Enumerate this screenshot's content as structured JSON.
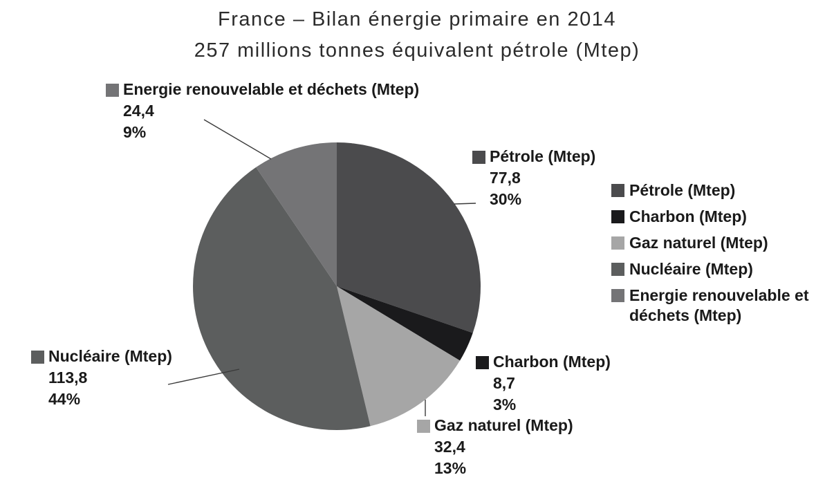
{
  "header": {
    "title": "France – Bilan énergie primaire en 2014",
    "subtitle": "257 millions tonnes équivalent pétrole (Mtep)"
  },
  "chart_data": {
    "type": "pie",
    "title": "France – Bilan énergie primaire en 2014",
    "subtitle": "257 millions tonnes équivalent pétrole (Mtep)",
    "unit": "Mtep",
    "total_displayed": 257,
    "direction": "clockwise",
    "start_angle_deg": 0,
    "legend_position": "right",
    "series": [
      {
        "slug": "petrole",
        "name": "Pétrole (Mtep)",
        "value": 77.8,
        "value_label": "77,8",
        "percent_label": "30%",
        "color": "#4b4b4d"
      },
      {
        "slug": "charbon",
        "name": "Charbon (Mtep)",
        "value": 8.7,
        "value_label": "8,7",
        "percent_label": "3%",
        "color": "#1a1a1c"
      },
      {
        "slug": "gaz-naturel",
        "name": "Gaz naturel (Mtep)",
        "value": 32.4,
        "value_label": "32,4",
        "percent_label": "13%",
        "color": "#a6a6a6"
      },
      {
        "slug": "nucleaire",
        "name": "Nucléaire (Mtep)",
        "value": 113.8,
        "value_label": "113,8",
        "percent_label": "44%",
        "color": "#5c5e5e"
      },
      {
        "slug": "energie-renouvelable",
        "name": "Energie renouvelable et déchets (Mtep)",
        "value": 24.4,
        "value_label": "24,4",
        "percent_label": "9%",
        "color": "#747476"
      }
    ]
  }
}
